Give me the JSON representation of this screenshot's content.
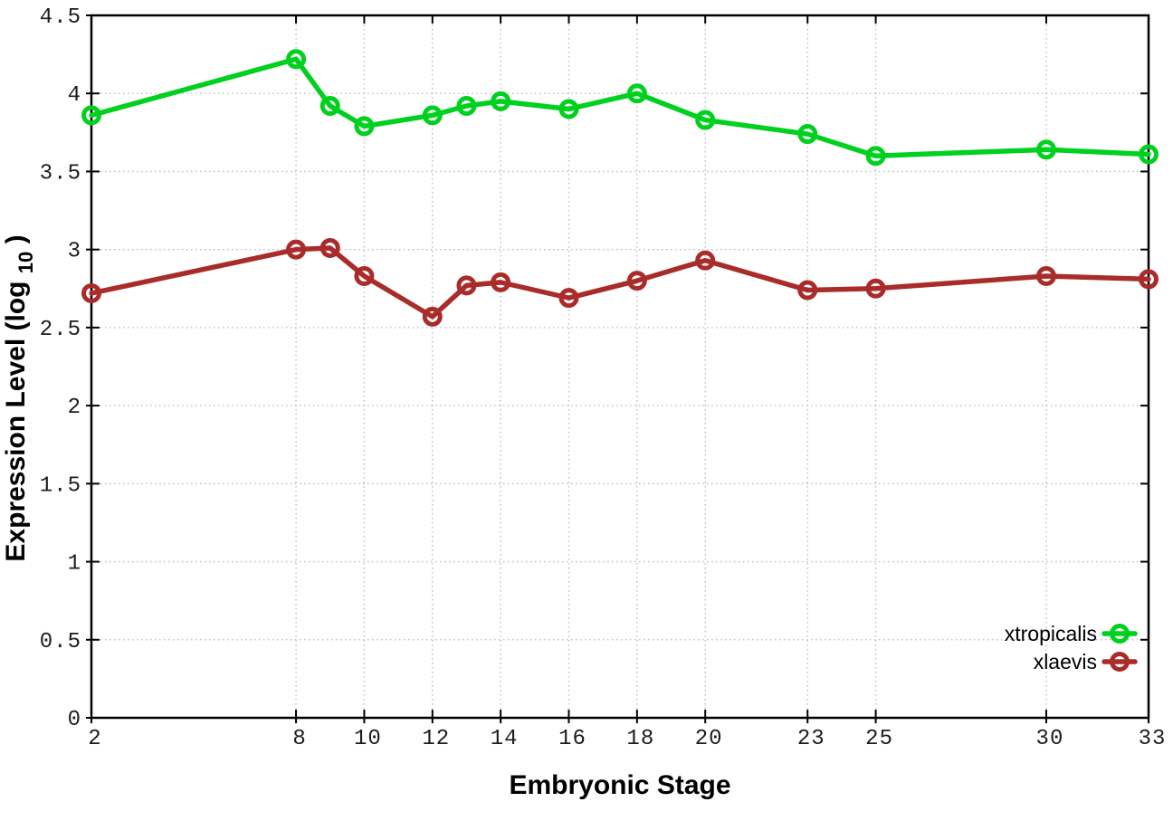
{
  "chart_data": {
    "type": "line",
    "title": "",
    "xlabel": "Embryonic Stage",
    "ylabel": "Expression Level (log10)",
    "ylabel_parts": {
      "main": "Expression Level (log",
      "sub": "10",
      "close": ")"
    },
    "xlim": [
      2,
      33
    ],
    "ylim": [
      0,
      4.5
    ],
    "grid": true,
    "legend_position": "bottom-right",
    "x_tick_values": [
      2,
      8,
      10,
      12,
      14,
      16,
      18,
      20,
      23,
      25,
      30,
      33
    ],
    "x_tick_labels": [
      "2",
      "8",
      "10",
      "12",
      "14",
      "16",
      "18",
      "20",
      "23",
      "25",
      "30",
      "33"
    ],
    "y_tick_values": [
      0,
      0.5,
      1,
      1.5,
      2,
      2.5,
      3,
      3.5,
      4,
      4.5
    ],
    "y_tick_labels": [
      "0",
      "0.5",
      "1",
      "1.5",
      "2",
      "2.5",
      "3",
      "3.5",
      "4",
      "4.5"
    ],
    "x": [
      2,
      8,
      9,
      10,
      12,
      13,
      14,
      16,
      18,
      20,
      23,
      25,
      30,
      33
    ],
    "series": [
      {
        "name": "xtropicalis",
        "color": "#00d01e",
        "values": [
          3.86,
          4.22,
          3.92,
          3.79,
          3.86,
          3.92,
          3.95,
          3.9,
          4.0,
          3.83,
          3.74,
          3.6,
          3.64,
          3.61
        ]
      },
      {
        "name": "xlaevis",
        "color": "#a92c2a",
        "values": [
          2.72,
          3.0,
          3.01,
          2.83,
          2.57,
          2.77,
          2.79,
          2.69,
          2.8,
          2.93,
          2.74,
          2.75,
          2.83,
          2.81
        ]
      }
    ]
  },
  "styles": {
    "grid_color": "#b8b8b8",
    "border_color": "#000000",
    "tick_label_color": "#1c1c1c",
    "background": "#ffffff"
  }
}
